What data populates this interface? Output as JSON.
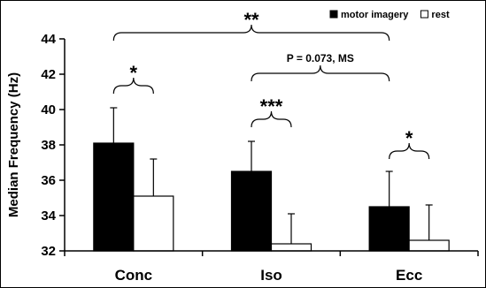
{
  "chart_data": {
    "type": "bar",
    "categories": [
      "Conc",
      "Iso",
      "Ecc"
    ],
    "series": [
      {
        "name": "motor imagery",
        "values": [
          38.1,
          36.5,
          34.5
        ],
        "error": [
          2.0,
          1.7,
          2.0
        ],
        "fill": "#000000"
      },
      {
        "name": "rest",
        "values": [
          35.1,
          32.4,
          32.6
        ],
        "error": [
          2.1,
          1.7,
          2.0
        ],
        "fill": "#ffffff"
      }
    ],
    "ylabel": "Median Frequency (Hz)",
    "ylim": [
      32,
      44
    ],
    "yticks": [
      32,
      34,
      36,
      38,
      40,
      42,
      44
    ],
    "legend_position": "top-right",
    "annotations": [
      {
        "text": "*",
        "from": "Conc:motor imagery",
        "to": "Conc:rest",
        "y": 40.9
      },
      {
        "text": "***",
        "from": "Iso:motor imagery",
        "to": "Iso:rest",
        "y": 39.0
      },
      {
        "text": "*",
        "from": "Ecc:motor imagery",
        "to": "Ecc:rest",
        "y": 37.2
      },
      {
        "text": "P = 0.073, MS",
        "from": "Iso:motor imagery",
        "to": "Ecc:motor imagery",
        "y": 41.6
      },
      {
        "text": "**",
        "from": "Conc:motor imagery",
        "to": "Ecc:motor imagery",
        "y": 43.9
      }
    ]
  }
}
